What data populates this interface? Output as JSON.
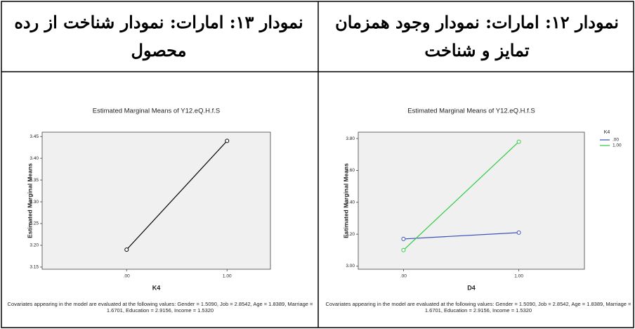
{
  "table": {
    "headers": [
      "نمودار ۱۲: امارات: نمودار وجود همزمان تمایز و شناخت",
      "نمودار ۱۳: امارات: نمودار شناخت از رده محصول"
    ]
  },
  "chart_data": [
    {
      "type": "line",
      "title": "Estimated Marginal Means of Y12.eQ.H.f.S",
      "y_label": "Estimated Marginal Means",
      "x_label": "K4",
      "categories": [
        ".00",
        "1.00"
      ],
      "values": [
        3.19,
        3.44
      ],
      "color": "#000000",
      "ylim": [
        3.145,
        3.46
      ],
      "yticks": [
        3.15,
        {
          "value": 3.2,
          "label": "3.20"
        },
        3.25,
        {
          "value": 3.3,
          "label": "3.30"
        },
        3.35,
        {
          "value": 3.4,
          "label": "3.40"
        },
        3.45
      ],
      "grid": false,
      "note": "Covariates appearing in the model are evaluated at the following values: Gender = 1.5090, Job = 2.8542, Age = 1.8389, Marriage = 1.6701, Education = 2.9156, Income = 1.5320"
    },
    {
      "type": "line",
      "title": "Estimated Marginal Means of Y12.eQ.H.f.S",
      "y_label": "Estimated Marginal Means",
      "x_label": "D4",
      "categories": [
        ".00",
        "1.00"
      ],
      "series": [
        {
          "name": ".00",
          "color": "#3a4fb8",
          "values": [
            3.17,
            3.21
          ]
        },
        {
          "name": "1.00",
          "color": "#2ecc40",
          "values": [
            3.1,
            3.78
          ]
        }
      ],
      "legend_title": "K4",
      "legend": "right",
      "ylim": [
        2.98,
        3.84
      ],
      "yticks": [
        {
          "value": 3.0,
          "label": "3.00"
        },
        {
          "value": 3.2,
          "label": "3.20"
        },
        {
          "value": 3.4,
          "label": "3.40"
        },
        {
          "value": 3.6,
          "label": "3.60"
        },
        {
          "value": 3.8,
          "label": "3.80"
        }
      ],
      "grid": false,
      "note": "Covariates appearing in the model are evaluated at the following values: Gender = 1.5090, Job = 2.8542, Age = 1.8389, Marriage = 1.6701, Education = 2.9156, Income = 1.5320"
    }
  ]
}
